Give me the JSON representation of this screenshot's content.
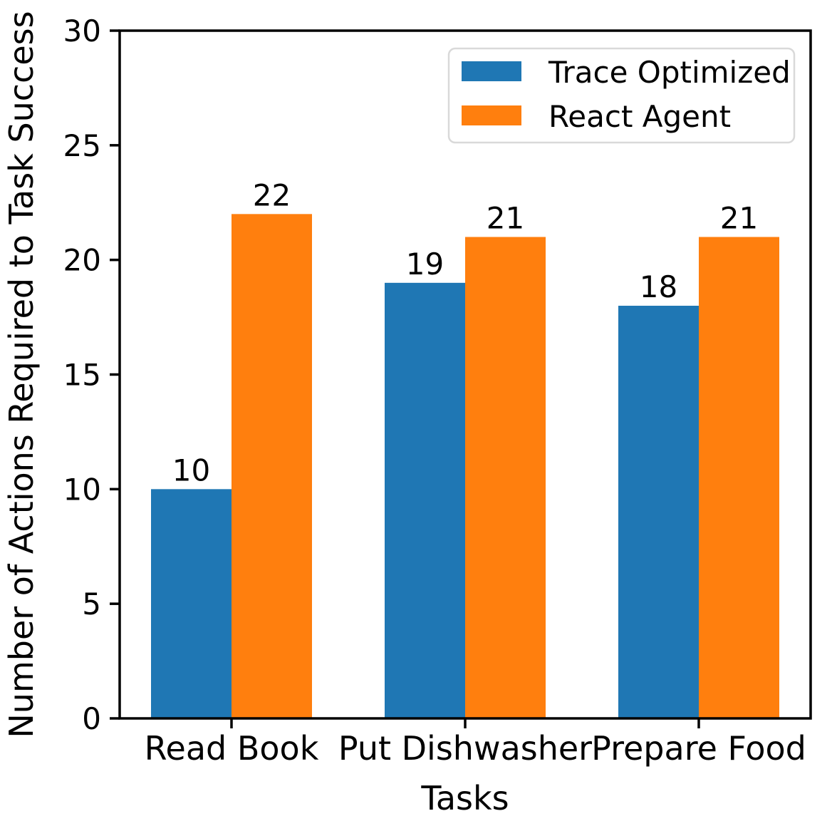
{
  "figure": {
    "background": "#ffffff"
  },
  "chart_data": {
    "type": "bar",
    "title": "",
    "xlabel": "Tasks",
    "ylabel": "Number of Actions Required to Task Success",
    "categories": [
      "Read Book",
      "Put Dishwasher",
      "Prepare Food"
    ],
    "series": [
      {
        "name": "Trace Optimized",
        "color": "#1f77b4",
        "values": [
          10,
          19,
          18
        ]
      },
      {
        "name": "React Agent",
        "color": "#ff7f0e",
        "values": [
          22,
          21,
          21
        ]
      }
    ],
    "bar_value_labels": [
      [
        "10",
        "19",
        "18"
      ],
      [
        "22",
        "21",
        "21"
      ]
    ],
    "ylim": [
      0,
      30
    ],
    "yticks": [
      "0",
      "5",
      "10",
      "15",
      "20",
      "25",
      "30"
    ],
    "ytick_values": [
      0,
      5,
      10,
      15,
      20,
      25,
      30
    ],
    "grid": false,
    "legend": {
      "position": "upper right",
      "entries": [
        {
          "label": "Trace Optimized",
          "color": "#1f77b4"
        },
        {
          "label": "React Agent",
          "color": "#ff7f0e"
        }
      ],
      "border_color": "#d9d9d9",
      "background": "#ffffff"
    },
    "axis_color": "#000000",
    "text_color": "#000000"
  }
}
